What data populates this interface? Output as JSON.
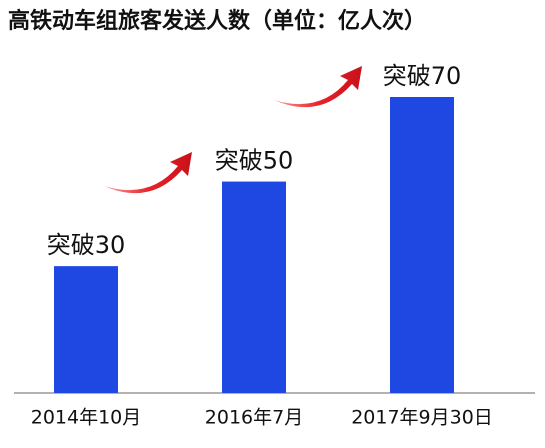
{
  "chart_data": {
    "type": "bar",
    "title": "高铁动车组旅客发送人数（单位：亿人次）",
    "categories": [
      "2014年10月",
      "2016年7月",
      "2017年9月30日"
    ],
    "values": [
      30,
      50,
      70
    ],
    "value_labels": [
      "突破30",
      "突破50",
      "突破70"
    ],
    "color": "#1f48e3"
  }
}
